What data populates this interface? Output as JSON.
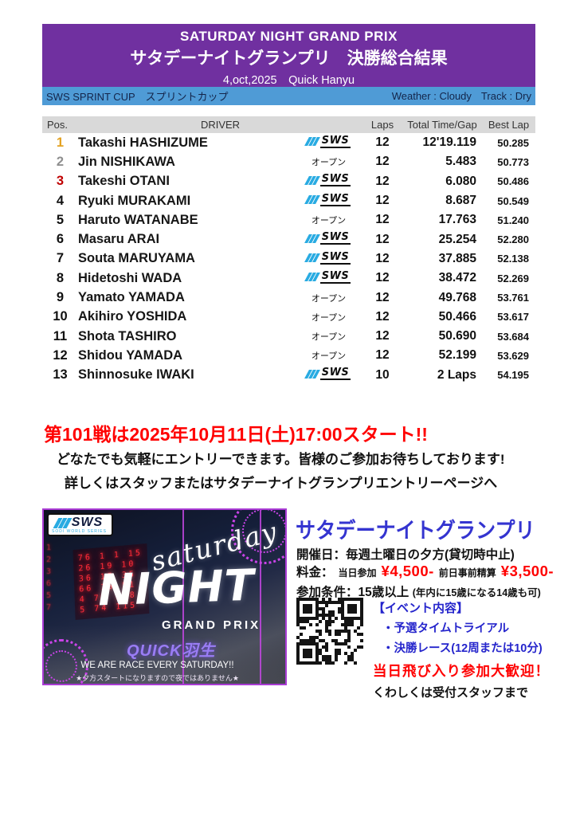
{
  "header": {
    "title_en": "SATURDAY NIGHT GRAND PRIX",
    "title_jp": "サタデーナイトグランプリ　決勝総合結果",
    "date_line": "4,oct,2025　Quick Hanyu",
    "cup_label": "SWS SPRINT CUP　スプリントカップ",
    "weather": "Weather : Cloudy",
    "track": "Track : Dry"
  },
  "table": {
    "columns": {
      "pos": "Pos.",
      "driver": "DRIVER",
      "laps": "Laps",
      "total": "Total Time/Gap",
      "best": "Best Lap"
    },
    "sws_label": "SWS",
    "open_label": "オープン",
    "rows": [
      {
        "pos": "1",
        "pos_color": "#E3A222",
        "driver": "Takashi HASHIZUME",
        "team": "SWS",
        "laps": "12",
        "total": "12'19.119",
        "best": "50.285"
      },
      {
        "pos": "2",
        "pos_color": "#8F8F8F",
        "driver": "Jin NISHIKAWA",
        "team": "OPEN",
        "laps": "12",
        "total": "5.483",
        "best": "50.773"
      },
      {
        "pos": "3",
        "pos_color": "#C00000",
        "driver": "Takeshi OTANI",
        "team": "SWS",
        "laps": "12",
        "total": "6.080",
        "best": "50.486"
      },
      {
        "pos": "4",
        "pos_color": "#111111",
        "driver": "Ryuki MURAKAMI",
        "team": "SWS",
        "laps": "12",
        "total": "8.687",
        "best": "50.549"
      },
      {
        "pos": "5",
        "pos_color": "#111111",
        "driver": "Haruto WATANABE",
        "team": "OPEN",
        "laps": "12",
        "total": "17.763",
        "best": "51.240"
      },
      {
        "pos": "6",
        "pos_color": "#111111",
        "driver": "Masaru ARAI",
        "team": "SWS",
        "laps": "12",
        "total": "25.254",
        "best": "52.280"
      },
      {
        "pos": "7",
        "pos_color": "#111111",
        "driver": "Souta MARUYAMA",
        "team": "SWS",
        "laps": "12",
        "total": "37.885",
        "best": "52.138"
      },
      {
        "pos": "8",
        "pos_color": "#111111",
        "driver": "Hidetoshi WADA",
        "team": "SWS",
        "laps": "12",
        "total": "38.472",
        "best": "52.269"
      },
      {
        "pos": "9",
        "pos_color": "#111111",
        "driver": "Yamato YAMADA",
        "team": "OPEN",
        "laps": "12",
        "total": "49.768",
        "best": "53.761"
      },
      {
        "pos": "10",
        "pos_color": "#111111",
        "driver": "Akihiro YOSHIDA",
        "team": "OPEN",
        "laps": "12",
        "total": "50.466",
        "best": "53.617"
      },
      {
        "pos": "11",
        "pos_color": "#111111",
        "driver": "Shota TASHIRO",
        "team": "OPEN",
        "laps": "12",
        "total": "50.690",
        "best": "53.684"
      },
      {
        "pos": "12",
        "pos_color": "#111111",
        "driver": "Shidou YAMADA",
        "team": "OPEN",
        "laps": "12",
        "total": "52.199",
        "best": "53.629"
      },
      {
        "pos": "13",
        "pos_color": "#111111",
        "driver": "Shinnosuke IWAKI",
        "team": "SWS",
        "laps": "10",
        "total": "2 Laps",
        "best": "54.195"
      }
    ]
  },
  "announcement": {
    "headline": "第101戦は2025年10月11日(土)17:00スタート!!",
    "line1": "どなたでも気軽にエントリーできます。皆様のご参加お待ちしております!",
    "line2": "詳しくはスタッフまたはサタデーナイトグランプリエントリーページへ"
  },
  "poster": {
    "logo_text": "SWS",
    "logo_sub": "SODI WORLD SERIES",
    "script_text": "saturday",
    "night_text": "NIGHT",
    "grand_prix": "GRAND PRIX",
    "brand": "QUICK羽生",
    "tagline": "WE ARE RACE EVERY SATURDAY!!",
    "note": "★夕方スタートになりますので夜ではありません★",
    "led_rows": [
      "76 1 1 15",
      "26 19 10",
      "36 15 35",
      "66 15 51",
      "4 70 118",
      "5 74 115"
    ],
    "led_side": [
      "1",
      "2",
      "3",
      "6",
      "5",
      "7"
    ]
  },
  "info": {
    "title": "サタデーナイトグランプリ",
    "schedule": "開催日：毎週土曜日の夕方(貸切時中止)",
    "fee_label": "料金：",
    "fee_day_label": "当日参加",
    "fee_day": "¥4,500-",
    "fee_pre_label": "前日事前精算",
    "fee_pre": "¥3,500-",
    "condition_main": "参加条件：15歳以上",
    "condition_note": "(年内に15歳になる14歳も可)",
    "event_header": "【イベント内容】",
    "event_items": [
      "・予選タイムトライアル",
      "・決勝レース(12周または10分)"
    ],
    "walkin": "当日飛び入り参加大歓迎！",
    "contact": "くわしくは受付スタッフまで"
  },
  "colors": {
    "header_purple": "#7030A0",
    "cup_blue": "#4F9BD6",
    "table_head_gray": "#D9D9D9",
    "gold": "#E3A222",
    "silver": "#8F8F8F",
    "bronze": "#C00000",
    "accent_red": "#FF0000",
    "info_blue": "#3434D0",
    "sws_blue": "#29ABE2",
    "poster_purple": "#A93BD4"
  }
}
